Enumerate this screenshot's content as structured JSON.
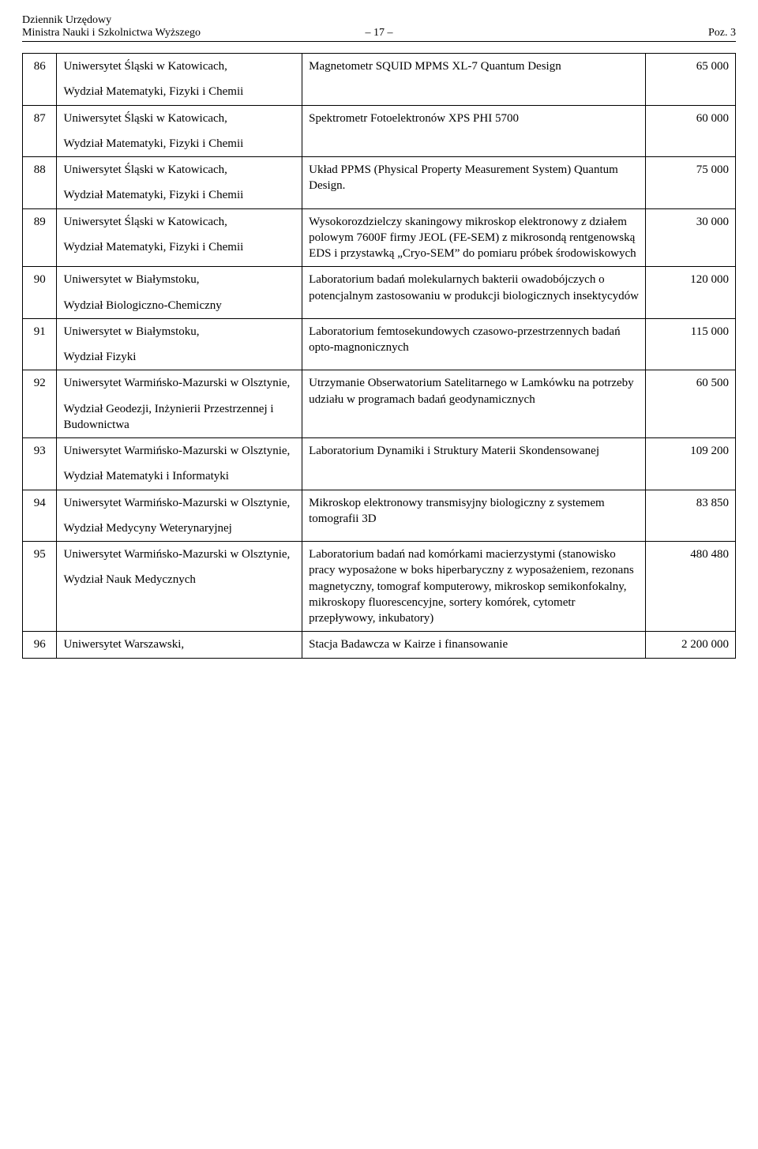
{
  "header": {
    "line1": "Dziennik Urzędowy",
    "line2_left": "Ministra Nauki i Szkolnictwa Wyższego",
    "line2_center": "– 17 –",
    "line2_right": "Poz. 3"
  },
  "rows": [
    {
      "n": "86",
      "inst1": "Uniwersytet Śląski w Katowicach,",
      "inst2": "Wydział Matematyki, Fizyki i Chemii",
      "desc": "Magnetometr SQUID MPMS XL-7 Quantum Design",
      "amt": "65 000"
    },
    {
      "n": "87",
      "inst1": "Uniwersytet Śląski w Katowicach,",
      "inst2": "Wydział Matematyki, Fizyki i Chemii",
      "desc": "Spektrometr Fotoelektronów XPS PHI 5700",
      "amt": "60 000"
    },
    {
      "n": "88",
      "inst1": "Uniwersytet Śląski w Katowicach,",
      "inst2": "Wydział Matematyki, Fizyki i Chemii",
      "desc": "Układ PPMS (Physical Property Measurement System) Quantum Design.",
      "amt": "75 000"
    },
    {
      "n": "89",
      "inst1": "Uniwersytet Śląski w Katowicach,",
      "inst2": "Wydział Matematyki, Fizyki i Chemii",
      "desc": "Wysokorozdzielczy skaningowy mikroskop elektronowy z działem polowym 7600F firmy JEOL (FE-SEM) z mikrosondą rentgenowską EDS i przystawką „Cryo-SEM” do pomiaru próbek środowiskowych",
      "amt": "30 000"
    },
    {
      "n": "90",
      "inst1": "Uniwersytet w Białymstoku,",
      "inst2": "Wydział Biologiczno-Chemiczny",
      "desc": "Laboratorium badań molekularnych bakterii owadobójczych o potencjalnym zastosowaniu w produkcji biologicznych insektycydów",
      "amt": "120 000"
    },
    {
      "n": "91",
      "inst1": "Uniwersytet w Białymstoku,",
      "inst2": "Wydział Fizyki",
      "desc": "Laboratorium femtosekundowych czasowo-przestrzennych badań opto-magnonicznych",
      "amt": "115 000"
    },
    {
      "n": "92",
      "inst1": "Uniwersytet Warmińsko-Mazurski w Olsztynie,",
      "inst2": "Wydział Geodezji, Inżynierii Przestrzennej i Budownictwa",
      "desc": "Utrzymanie Obserwatorium Satelitarnego w Lamkówku na potrzeby udziału w programach badań geodynamicznych",
      "amt": "60 500"
    },
    {
      "n": "93",
      "inst1": "Uniwersytet Warmińsko-Mazurski w Olsztynie,",
      "inst2": "Wydział Matematyki i Informatyki",
      "desc": "Laboratorium Dynamiki i Struktury Materii Skondensowanej",
      "amt": "109 200"
    },
    {
      "n": "94",
      "inst1": "Uniwersytet Warmińsko-Mazurski w Olsztynie,",
      "inst2": "Wydział Medycyny Weterynaryjnej",
      "desc": "Mikroskop elektronowy transmisyjny biologiczny z systemem tomografii 3D",
      "amt": "83 850"
    },
    {
      "n": "95",
      "inst1": "Uniwersytet Warmińsko-Mazurski w Olsztynie,",
      "inst2": "Wydział Nauk Medycznych",
      "desc": "Laboratorium badań nad komórkami macierzystymi (stanowisko pracy wyposażone w boks hiperbaryczny z wyposażeniem, rezonans magnetyczny, tomograf komputerowy, mikroskop semikonfokalny, mikroskopy fluorescencyjne, sortery komórek, cytometr przepływowy, inkubatory)",
      "amt": "480 480"
    },
    {
      "n": "96",
      "inst1": "Uniwersytet Warszawski,",
      "inst2": "",
      "desc": "Stacja Badawcza w Kairze i finansowanie",
      "amt": "2 200 000"
    }
  ]
}
